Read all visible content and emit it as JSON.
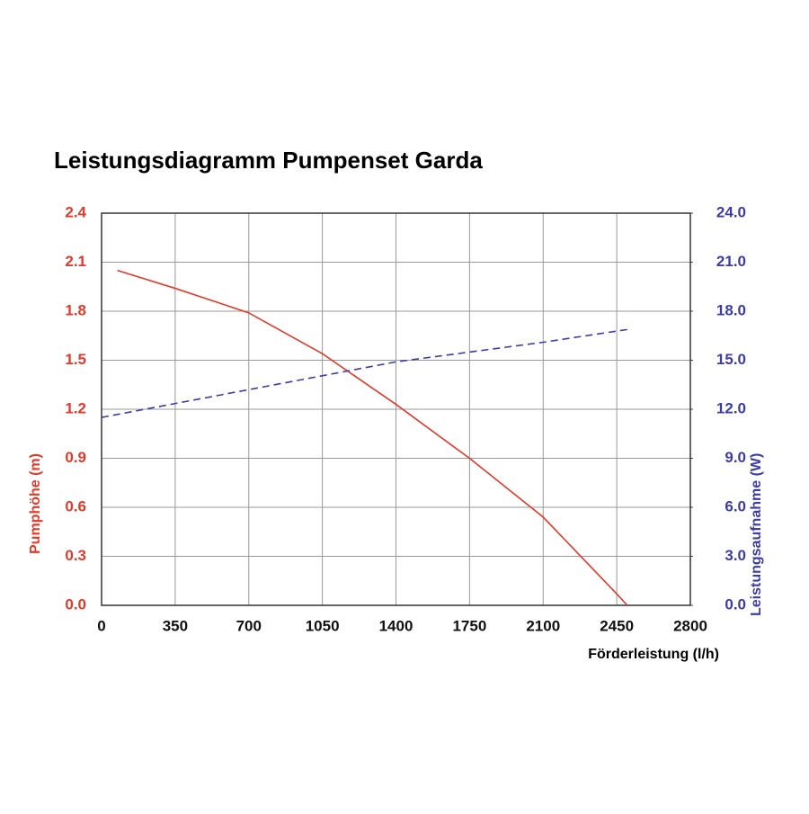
{
  "chart_data": {
    "type": "line",
    "title": "Leistungsdiagramm Pumpenset Garda",
    "xlabel": "Förderleistung (l/h)",
    "ylabel": "Pumphöhe (m)",
    "y2label": "Leistungsaufnahme (W)",
    "xlim": [
      0,
      2800
    ],
    "xticks": [
      0,
      350,
      700,
      1050,
      1400,
      1750,
      2100,
      2450,
      2800
    ],
    "ylim": [
      0,
      2.4
    ],
    "yticks": [
      {
        "value": 0,
        "label": "0.0"
      },
      0.3,
      0.6,
      0.9,
      1.2,
      1.5,
      1.8,
      2.1,
      2.4
    ],
    "y2lim": [
      0,
      24
    ],
    "y2ticks": [
      {
        "value": 0,
        "label": "0.0"
      },
      {
        "value": 3,
        "label": "3.0"
      },
      {
        "value": 6,
        "label": "6.0"
      },
      {
        "value": 9,
        "label": "9.0"
      },
      {
        "value": 12,
        "label": "12.0"
      },
      {
        "value": 15,
        "label": "15.0"
      },
      {
        "value": 18,
        "label": "18.0"
      },
      {
        "value": 21,
        "label": "21.0"
      },
      {
        "value": 24,
        "label": "24.0"
      }
    ],
    "grid": true,
    "series": [
      {
        "name": "Pumphöhe",
        "color": "#e03a2a",
        "axis": "y",
        "dashed": false,
        "x": [
          75,
          350,
          700,
          1050,
          1400,
          1750,
          2100,
          2450,
          2500
        ],
        "values": [
          2.05,
          1.94,
          1.79,
          1.54,
          1.23,
          0.9,
          0.54,
          0.07,
          0
        ]
      },
      {
        "name": "Leistungsaufnahme",
        "color": "#3c3ca8",
        "axis": "y2",
        "dashed": true,
        "x": [
          0,
          700,
          1400,
          2100,
          2510
        ],
        "values": [
          11.5,
          13.2,
          14.9,
          16.1,
          16.9
        ]
      }
    ]
  }
}
